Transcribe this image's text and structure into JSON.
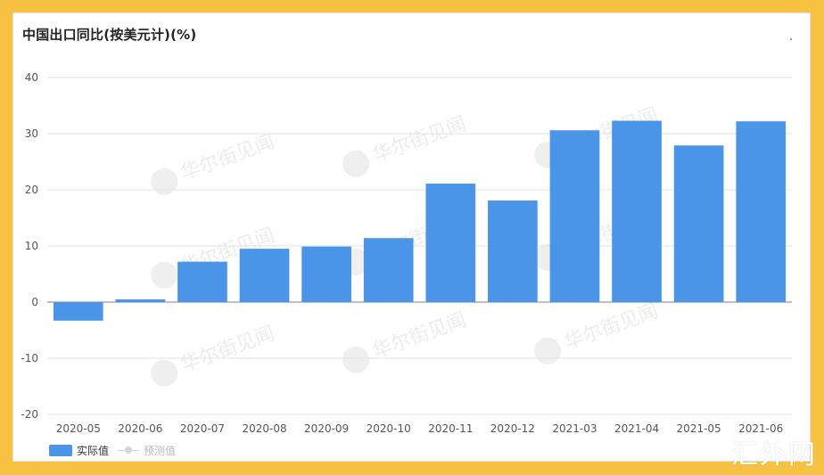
{
  "chart_data": {
    "type": "bar",
    "title": "中国出口同比(按美元计)(%)",
    "categories": [
      "2020-05",
      "2020-06",
      "2020-07",
      "2020-08",
      "2020-09",
      "2020-10",
      "2020-11",
      "2020-12",
      "2021-03",
      "2021-04",
      "2021-05",
      "2021-06"
    ],
    "series": [
      {
        "name": "实际值",
        "values": [
          -3.3,
          0.5,
          7.2,
          9.5,
          9.9,
          11.4,
          21.1,
          18.1,
          30.6,
          32.3,
          27.9,
          32.2
        ]
      }
    ],
    "yticks": [
      40,
      30,
      20,
      10,
      0,
      -10,
      -20
    ],
    "ylim": [
      -20,
      40
    ],
    "grid": true,
    "legend_position": "bottom-left",
    "bar_color": "#4a95e8"
  },
  "legend": {
    "actual_label": "实际值",
    "forecast_label": "预测值"
  },
  "watermark": {
    "text": "华尔街见闻"
  },
  "brand": {
    "text": "汇外网"
  },
  "colors": {
    "background": "#f7c242",
    "bar": "#4a95e8",
    "grid": "#e3e3e3"
  }
}
